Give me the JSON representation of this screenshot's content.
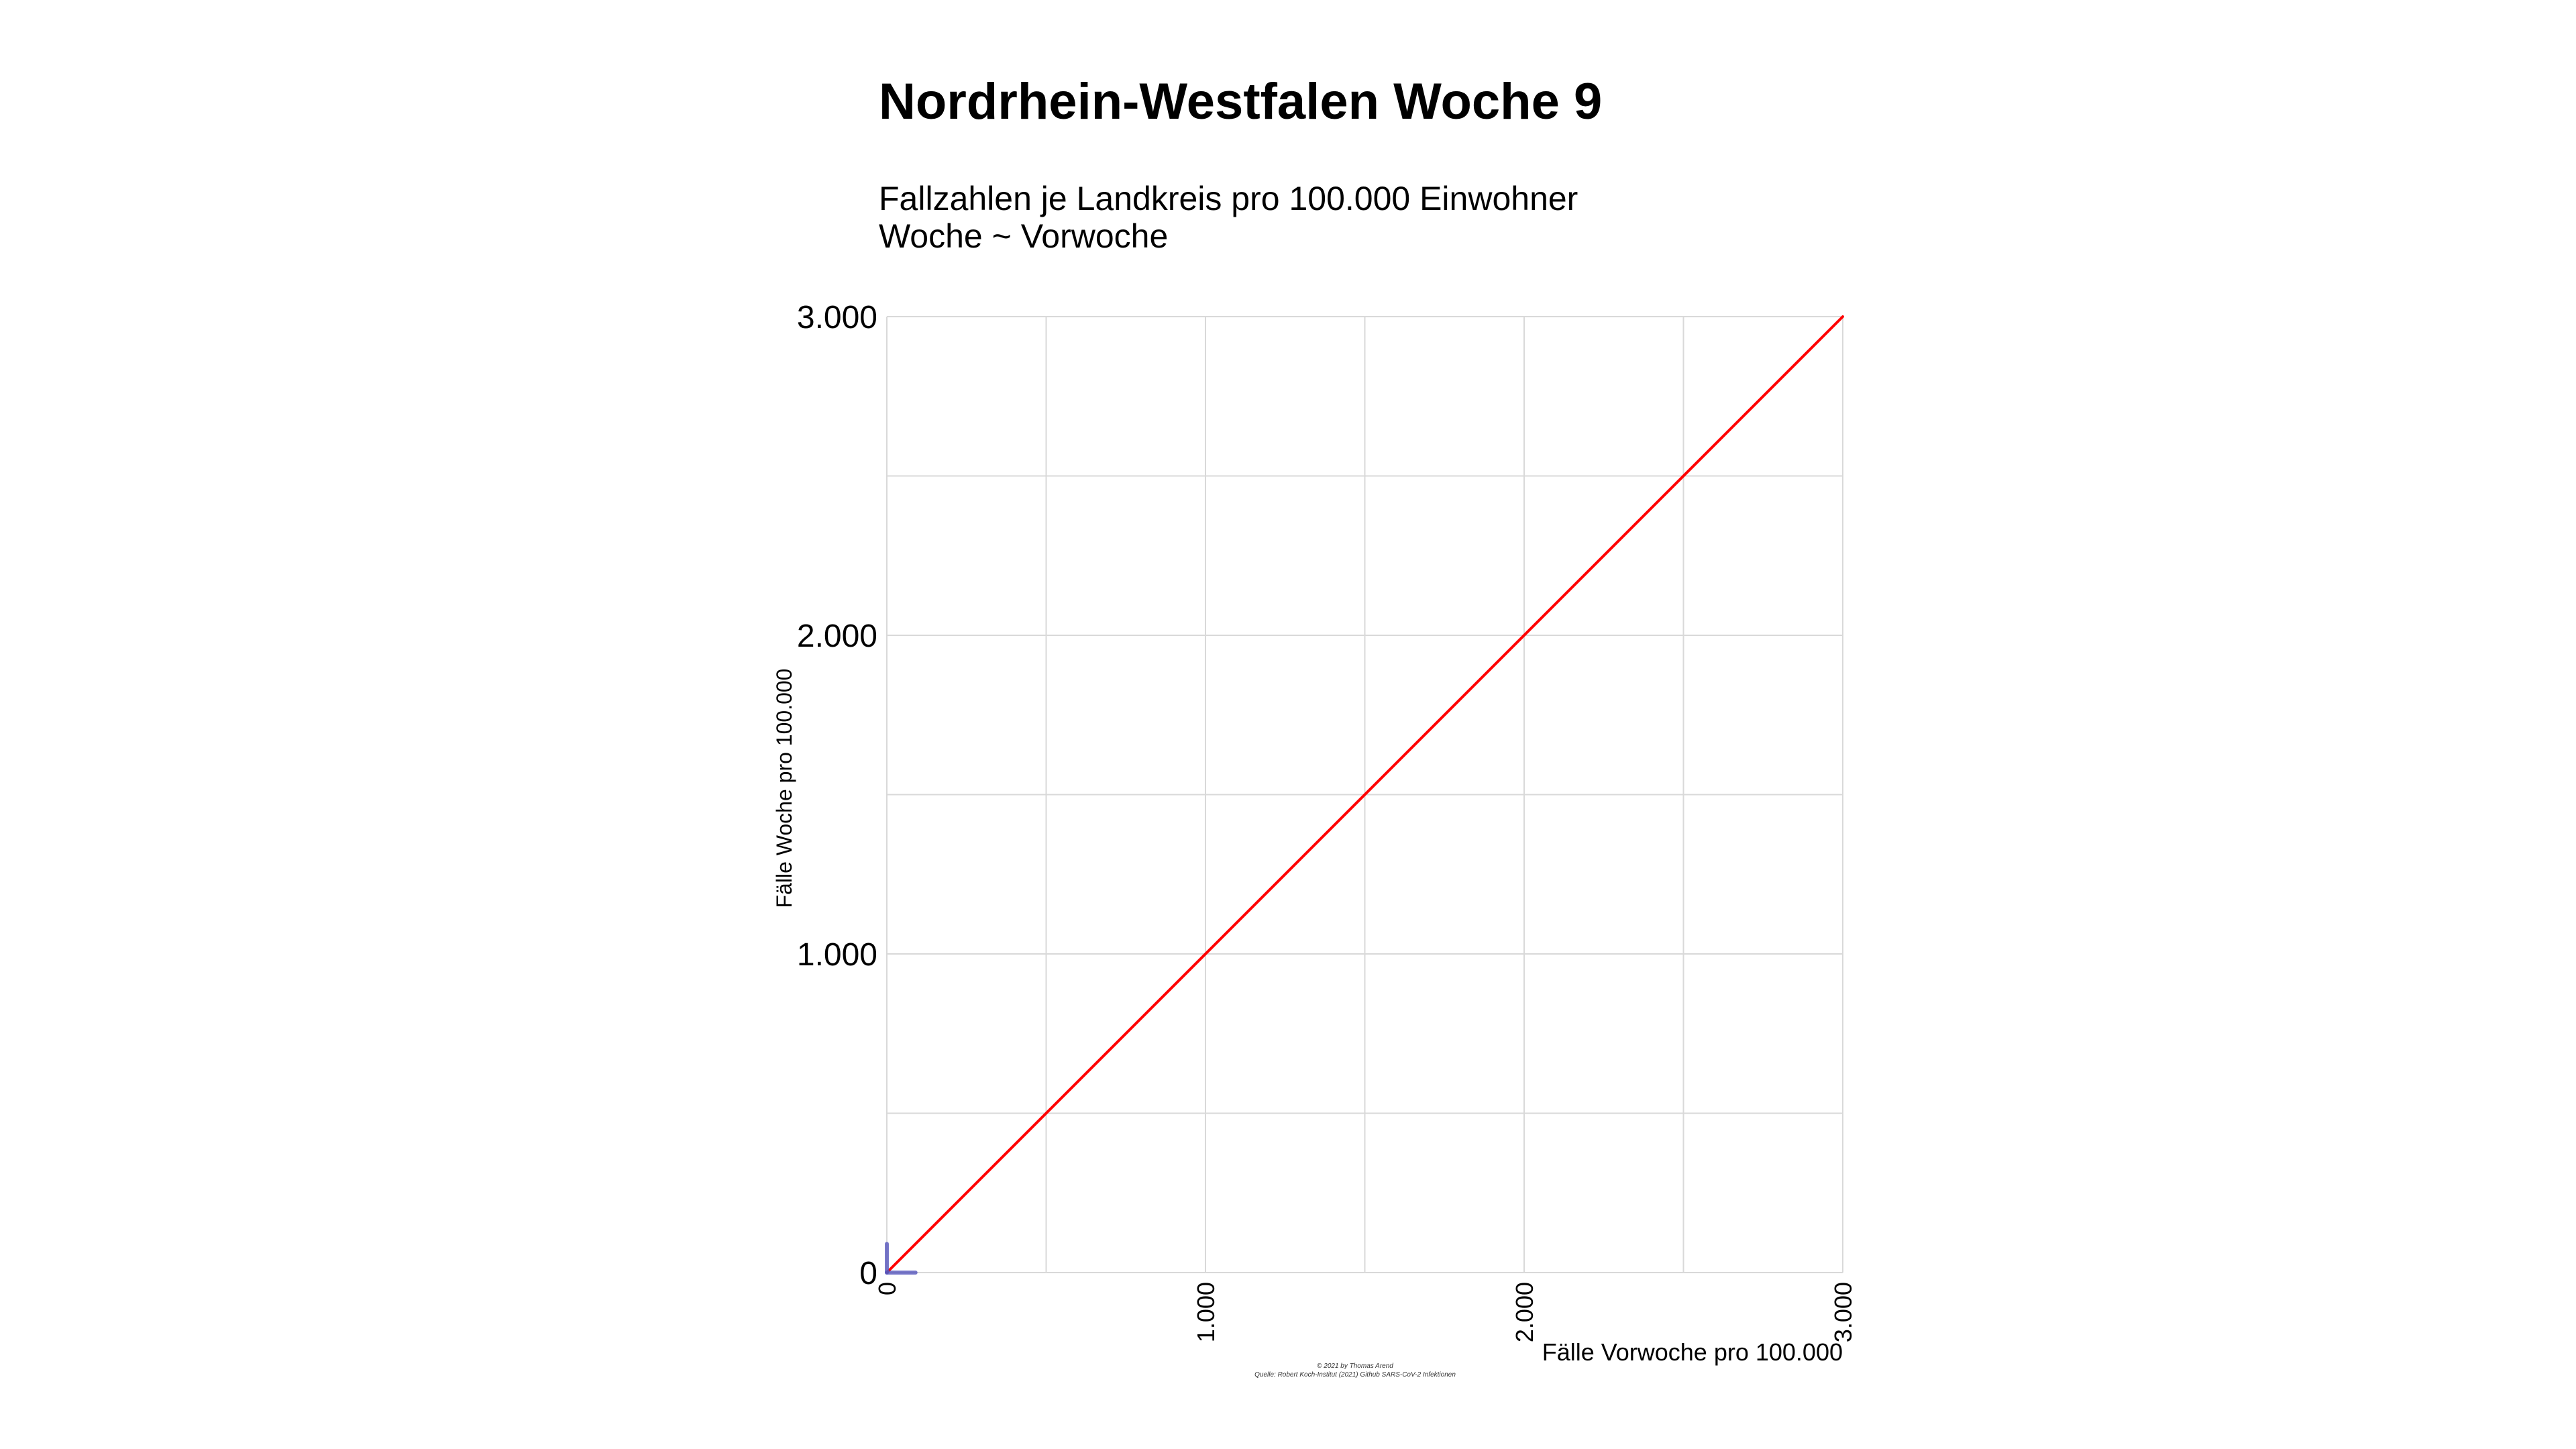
{
  "title": "Nordrhein-Westfalen Woche 9",
  "subtitle_line1": "Fallzahlen je Landkreis pro 100.000 Einwohner",
  "subtitle_line2": "Woche ~ Vorwoche",
  "caption_line1": "© 2021 by Thomas Arend",
  "caption_line2": "Quelle: Robert Koch-Institut (2021) Github SARS-CoV-2 Infektionen",
  "colors": {
    "reference_line": "#ff0000",
    "data": "#5555bb",
    "grid": "#d9d9d9"
  },
  "chart_data": {
    "type": "line",
    "xlabel": "Fälle Vorwoche pro 100.000",
    "ylabel": "Fälle Woche pro 100.000",
    "xlim": [
      0,
      3000
    ],
    "ylim": [
      0,
      3000
    ],
    "x_ticks": [
      0,
      1000,
      2000,
      3000
    ],
    "y_ticks": [
      0,
      1000,
      2000,
      3000
    ],
    "x_tick_labels": [
      "0",
      "1.000",
      "2.000",
      "3.000"
    ],
    "y_tick_labels": [
      "0",
      "1.000",
      "2.000",
      "3.000"
    ],
    "grid": true,
    "series": [
      {
        "role": "reference",
        "x": [
          0,
          3000
        ],
        "y": [
          0,
          3000
        ]
      },
      {
        "role": "data-vertical",
        "x": [
          0,
          0
        ],
        "y": [
          0,
          90
        ]
      },
      {
        "role": "data-horizontal",
        "x": [
          0,
          90
        ],
        "y": [
          0,
          0
        ]
      }
    ]
  }
}
